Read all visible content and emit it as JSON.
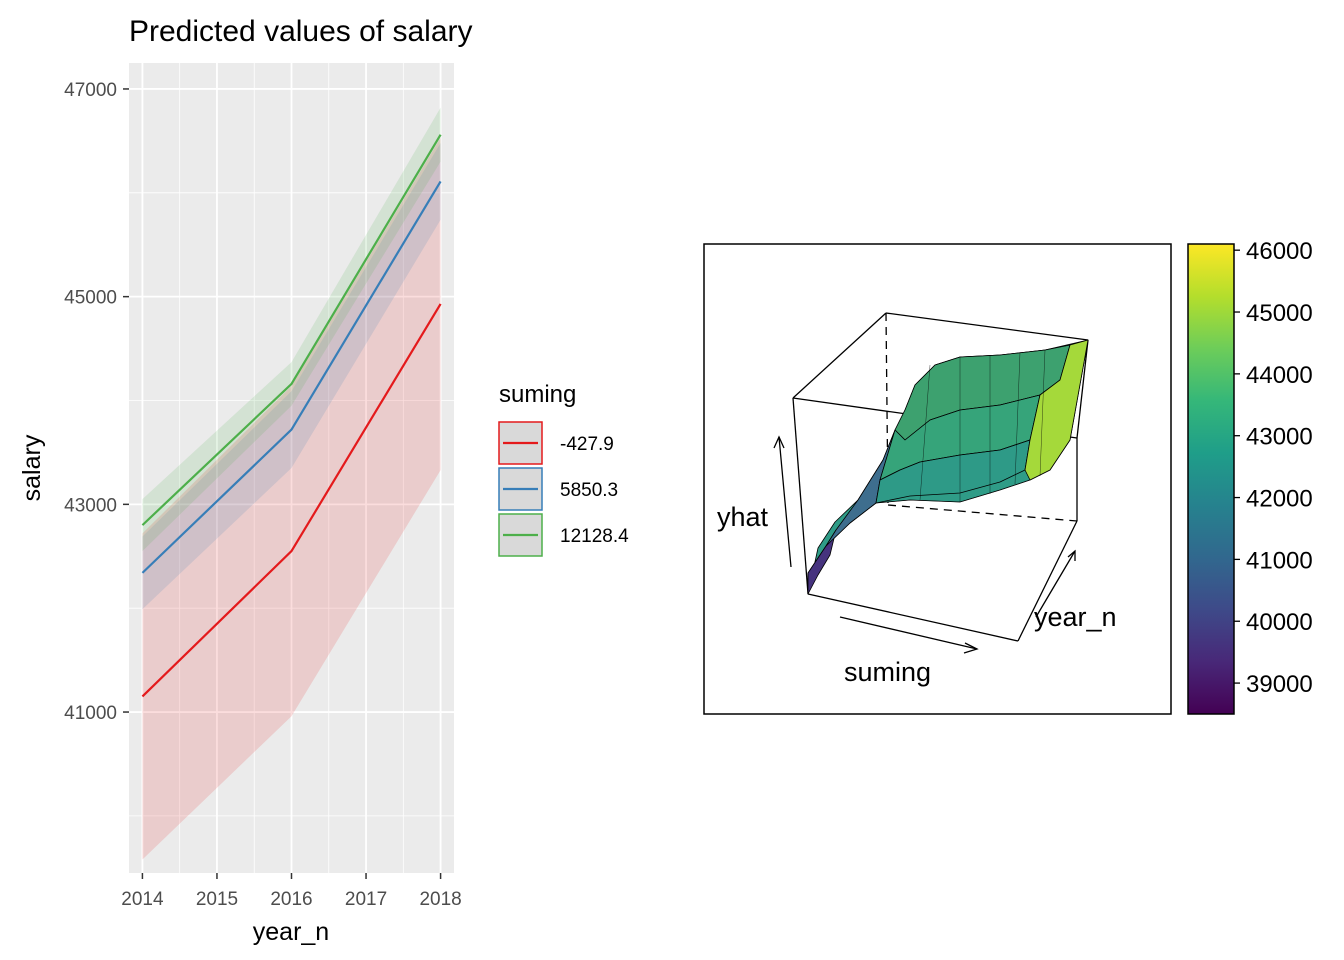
{
  "chart_data": [
    {
      "type": "line",
      "title": "Predicted values of salary",
      "xlabel": "year_n",
      "ylabel": "salary",
      "x": [
        2014,
        2015,
        2016,
        2017,
        2018
      ],
      "x_ticks": [
        "2014",
        "2015",
        "2016",
        "2017",
        "2018"
      ],
      "y_ticks": [
        "41000",
        "43000",
        "45000",
        "47000"
      ],
      "ylim": [
        39450,
        47250
      ],
      "grid": true,
      "legend": {
        "title": "suming",
        "placement": "right"
      },
      "series": [
        {
          "name": "-427.9",
          "color": "#E41A1C",
          "x": [
            2014,
            2016,
            2018
          ],
          "values": [
            41150,
            42550,
            44930
          ],
          "ci_low": [
            39580,
            40960,
            43330
          ],
          "ci_high": [
            42720,
            44140,
            46530
          ]
        },
        {
          "name": "5850.3",
          "color": "#377EB8",
          "x": [
            2014,
            2016,
            2018
          ],
          "values": [
            42340,
            43720,
            46110
          ],
          "ci_low": [
            41990,
            43350,
            45740
          ],
          "ci_high": [
            42690,
            44090,
            46480
          ]
        },
        {
          "name": "12128.4",
          "color": "#4DAF4A",
          "x": [
            2014,
            2016,
            2018
          ],
          "values": [
            42800,
            44160,
            46560
          ],
          "ci_low": [
            42550,
            43950,
            46300
          ],
          "ci_high": [
            43050,
            44370,
            46820
          ]
        }
      ]
    },
    {
      "type": "surface3d",
      "x_axis_label": "suming",
      "y_axis_label": "year_n",
      "z_axis_label": "yhat",
      "colorbar": {
        "palette": "viridis",
        "range": [
          38500,
          46100
        ],
        "ticks": [
          "39000",
          "40000",
          "41000",
          "42000",
          "43000",
          "44000",
          "45000",
          "46000"
        ],
        "colors": [
          "#440154",
          "#482878",
          "#3E4A89",
          "#31688E",
          "#26828E",
          "#1F9E89",
          "#35B779",
          "#6DCD59",
          "#B4DE2C",
          "#FDE725"
        ]
      }
    }
  ]
}
